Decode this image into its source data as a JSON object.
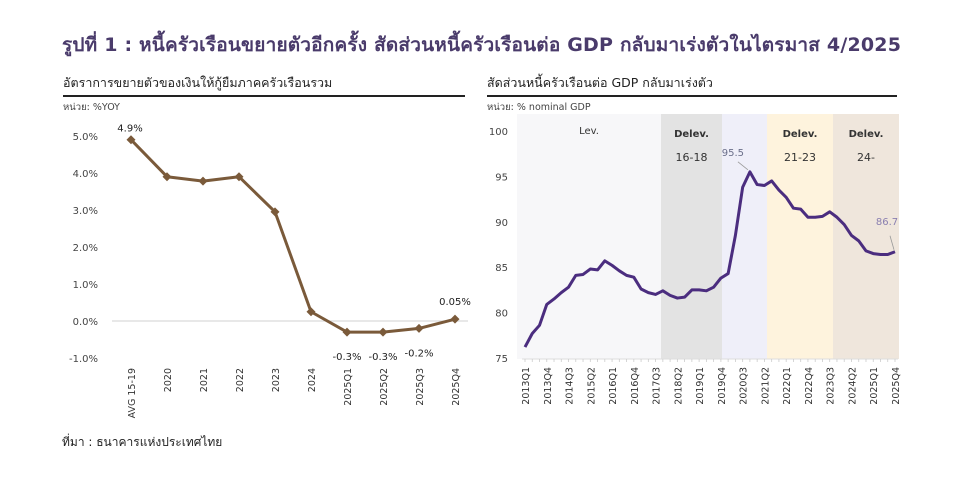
{
  "page": {
    "title": "รูปที่ 1 : หนี้ครัวเรือนขยายตัวอีกครั้ง สัดส่วนหนี้ครัวเรือนต่อ GDP กลับมาเร่งตัวในไตรมาส 4/2025",
    "source": "ที่มา : ธนาคารแห่งประเทศไทย"
  },
  "left_panel": {
    "title": "อัตราการขยายตัวของเงินให้กู้ยืมภาคครัวเรือนรวม",
    "unit": "หน่วย: %YOY"
  },
  "right_panel": {
    "title": "สัดส่วนหนี้ครัวเรือนต่อ GDP กลับมาเร่งตัว",
    "unit": "หน่วย: % nominal GDP"
  },
  "chart_data": [
    {
      "type": "line",
      "title": "อัตราการขยายตัวของเงินให้กู้ยืมภาคครัวเรือนรวม",
      "xlabel": "",
      "ylabel": "%YOY",
      "ylim": [
        -1.0,
        5.0
      ],
      "yticks": [
        "5.0%",
        "4.0%",
        "3.0%",
        "2.0%",
        "1.0%",
        "0.0%",
        "-1.0%"
      ],
      "grid": false,
      "color": "#7a5a3a",
      "categories": [
        "AVG 15-19",
        "2020",
        "2021",
        "2022",
        "2023",
        "2024",
        "2025Q1",
        "2025Q2",
        "2025Q3",
        "2025Q4"
      ],
      "values": [
        4.9,
        3.9,
        3.78,
        3.9,
        2.95,
        0.25,
        -0.3,
        -0.3,
        -0.2,
        0.05
      ],
      "data_labels": [
        {
          "index": 0,
          "text": "4.9%"
        },
        {
          "index": 6,
          "text": "-0.3%"
        },
        {
          "index": 7,
          "text": "-0.3%"
        },
        {
          "index": 8,
          "text": "-0.2%"
        },
        {
          "index": 9,
          "text": "0.05%"
        }
      ]
    },
    {
      "type": "line",
      "title": "สัดส่วนหนี้ครัวเรือนต่อ GDP กลับมาเร่งตัว",
      "xlabel": "",
      "ylabel": "% nominal GDP",
      "ylim": [
        75,
        100
      ],
      "yticks": [
        100,
        95,
        90,
        85,
        80,
        75
      ],
      "grid": false,
      "color": "#4b2d7f",
      "x_tick_labels": [
        "2013Q1",
        "2013Q4",
        "2014Q3",
        "2015Q2",
        "2016Q1",
        "2016Q4",
        "2017Q3",
        "2018Q2",
        "2019Q1",
        "2019Q4",
        "2020Q3",
        "2021Q2",
        "2022Q1",
        "2022Q4",
        "2023Q3",
        "2024Q2",
        "2025Q1",
        "2025Q4"
      ],
      "x": [
        "2013Q1",
        "2013Q2",
        "2013Q3",
        "2013Q4",
        "2014Q1",
        "2014Q2",
        "2014Q3",
        "2014Q4",
        "2015Q1",
        "2015Q2",
        "2015Q3",
        "2015Q4",
        "2016Q1",
        "2016Q2",
        "2016Q3",
        "2016Q4",
        "2017Q1",
        "2017Q2",
        "2017Q3",
        "2017Q4",
        "2018Q1",
        "2018Q2",
        "2018Q3",
        "2018Q4",
        "2019Q1",
        "2019Q2",
        "2019Q3",
        "2019Q4",
        "2020Q1",
        "2020Q2",
        "2020Q3",
        "2020Q4",
        "2021Q1",
        "2021Q2",
        "2021Q3",
        "2021Q4",
        "2022Q1",
        "2022Q2",
        "2022Q3",
        "2022Q4",
        "2023Q1",
        "2023Q2",
        "2023Q3",
        "2023Q4",
        "2024Q1",
        "2024Q2",
        "2024Q3",
        "2024Q4",
        "2025Q1",
        "2025Q2",
        "2025Q3",
        "2025Q4"
      ],
      "values": [
        76.2,
        77.7,
        78.6,
        80.9,
        81.5,
        82.2,
        82.8,
        84.1,
        84.2,
        84.8,
        84.7,
        85.7,
        85.2,
        84.6,
        84.1,
        83.9,
        82.6,
        82.2,
        82.0,
        82.4,
        81.9,
        81.6,
        81.7,
        82.5,
        82.5,
        82.4,
        82.8,
        83.8,
        84.3,
        88.5,
        93.8,
        95.5,
        94.1,
        94.0,
        94.5,
        93.5,
        92.7,
        91.5,
        91.4,
        90.5,
        90.5,
        90.6,
        91.1,
        90.5,
        89.7,
        88.5,
        87.9,
        86.8,
        86.5,
        86.4,
        86.4,
        86.7
      ],
      "data_labels": [
        {
          "x": "2020Q4",
          "text": "95.5"
        },
        {
          "x": "2025Q4",
          "text": "86.7"
        }
      ],
      "bands": [
        {
          "label": "Lev.",
          "sublabel": "",
          "from": "2013Q1",
          "to": "2017Q3",
          "color": "#f7f7f9"
        },
        {
          "label": "Delev.",
          "sublabel": "16-18",
          "from": "2017Q4",
          "to": "2019Q4",
          "color": "#e3e3e3"
        },
        {
          "label": "",
          "sublabel": "",
          "from": "2020Q1",
          "to": "2021Q2",
          "color": "#efeff9"
        },
        {
          "label": "Delev.",
          "sublabel": "21-23",
          "from": "2021Q2",
          "to": "2023Q3",
          "color": "#fef3dd"
        },
        {
          "label": "Delev.",
          "sublabel": "24-",
          "from": "2023Q3",
          "to": "2025Q4",
          "color": "#efe6dc"
        }
      ]
    }
  ]
}
